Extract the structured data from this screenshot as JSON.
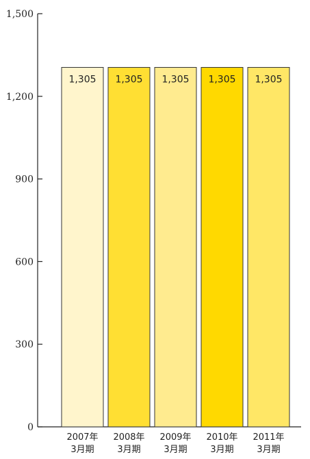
{
  "chart_data": {
    "type": "bar",
    "categories": [
      [
        "2007年",
        "3月期"
      ],
      [
        "2008年",
        "3月期"
      ],
      [
        "2009年",
        "3月期"
      ],
      [
        "2010年",
        "3月期"
      ],
      [
        "2011年",
        "3月期"
      ]
    ],
    "values": [
      1305,
      1305,
      1305,
      1305,
      1305
    ],
    "data_labels": [
      "1,305",
      "1,305",
      "1,305",
      "1,305",
      "1,305"
    ],
    "bar_colors": [
      "#FFF5CC",
      "#FFDF33",
      "#FFEB8F",
      "#FFD900",
      "#FFE766"
    ],
    "bar_stroke": "#333333",
    "ylim": [
      0,
      1500
    ],
    "yticks": [
      0,
      300,
      600,
      900,
      1200,
      1500
    ],
    "ytick_labels": [
      "0",
      "300",
      "600",
      "900",
      "1,200",
      "1,500"
    ],
    "title": "",
    "xlabel": "",
    "ylabel": "",
    "grid": false,
    "legend": "none"
  }
}
